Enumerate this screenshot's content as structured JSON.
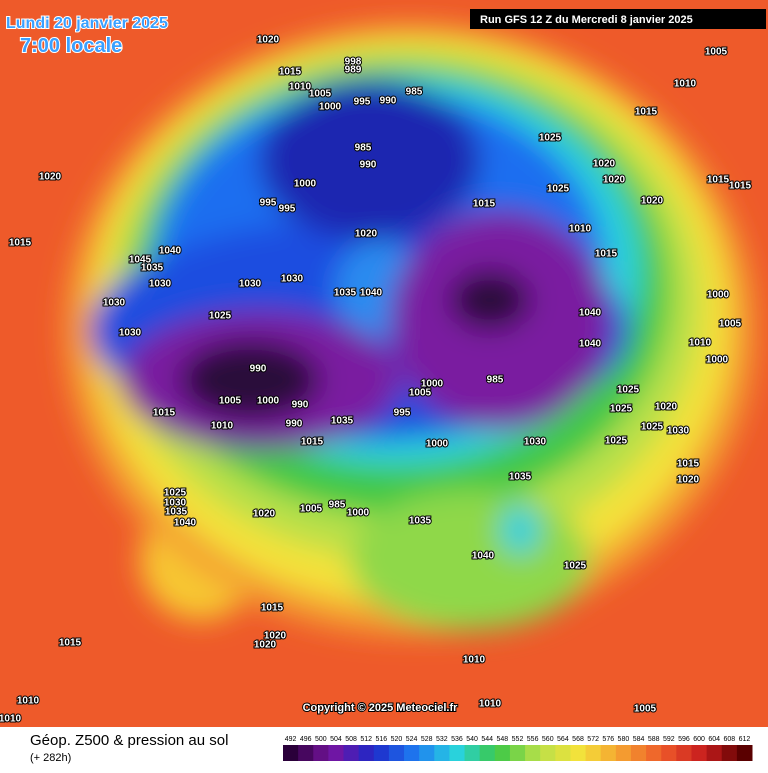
{
  "header": {
    "date": "Lundi 20 janvier 2025",
    "time": "7:00 locale",
    "run": "Run GFS 12 Z du Mercredi 8 janvier 2025"
  },
  "footer": {
    "title": "Géop. Z500 & pression au sol",
    "lead": "(+ 282h)",
    "copyright": "Copyright © 2025 Meteociel.fr"
  },
  "colorbar": {
    "ticks": [
      492,
      496,
      500,
      504,
      508,
      512,
      516,
      520,
      524,
      528,
      532,
      536,
      540,
      544,
      548,
      552,
      556,
      560,
      564,
      568,
      572,
      576,
      580,
      584,
      588,
      592,
      596,
      600,
      604,
      608,
      612
    ]
  },
  "isobar_labels": [
    "1020",
    "1015",
    "1010",
    "1005",
    "998",
    "989",
    "1000",
    "995",
    "990",
    "985",
    "985",
    "990",
    "1000",
    "995",
    "995",
    "1020",
    "1015",
    "1025",
    "1020",
    "1020",
    "1025",
    "1010",
    "1015",
    "1020",
    "1005",
    "1010",
    "1015",
    "1020",
    "1015",
    "1040",
    "1045",
    "1035",
    "1030",
    "1030",
    "1030",
    "1030",
    "1030",
    "1025",
    "1035",
    "1040",
    "990",
    "1005",
    "1000",
    "990",
    "1010",
    "990",
    "1035",
    "1015",
    "1000",
    "1005",
    "985",
    "995",
    "1000",
    "1030",
    "1035",
    "1040",
    "1040",
    "1025",
    "1025",
    "1025",
    "1020",
    "1025",
    "1030",
    "1015",
    "1020",
    "1000",
    "1005",
    "1010",
    "1000",
    "1025",
    "1030",
    "1035",
    "1040",
    "1020",
    "1005",
    "985",
    "1000",
    "1035",
    "1040",
    "1025",
    "1015",
    "1020",
    "1020",
    "1015",
    "1010",
    "1010",
    "1010",
    "1010",
    "1005",
    "1015",
    "1015",
    "1015"
  ]
}
